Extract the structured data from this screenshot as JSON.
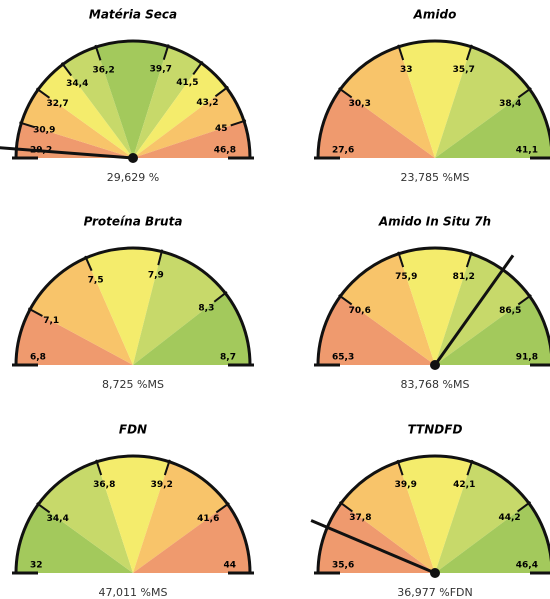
{
  "chart_data": [
    {
      "type": "gauge",
      "title": "Matéria Seca",
      "values": [
        29.629
      ],
      "value_labels": [
        "29,629 %"
      ],
      "ylim": [
        29.2,
        46.8
      ],
      "yticks": [
        {
          "value": 29.2,
          "label": "29,2"
        },
        {
          "value": 30.9,
          "label": "30,9"
        },
        {
          "value": 32.7,
          "label": "32,7"
        },
        {
          "value": 34.4,
          "label": "34,4"
        },
        {
          "value": 36.2,
          "label": "36,2"
        },
        {
          "value": 39.7,
          "label": "39,7"
        },
        {
          "value": 41.5,
          "label": "41,5"
        },
        {
          "value": 43.2,
          "label": "43,2"
        },
        {
          "value": 45,
          "label": "45"
        },
        {
          "value": 46.8,
          "label": "46,8"
        }
      ],
      "band_colors": [
        "#ef9a6e",
        "#f8c46a",
        "#f4ec6c",
        "#c7d96a",
        "#a3c95c",
        "#c7d96a",
        "#f4ec6c",
        "#f8c46a",
        "#ef9a6e"
      ]
    },
    {
      "type": "gauge",
      "title": "Amido",
      "values": [
        23.785
      ],
      "value_labels": [
        "23,785 %MS"
      ],
      "ylim": [
        27.6,
        41.1
      ],
      "yticks": [
        {
          "value": 27.6,
          "label": "27,6"
        },
        {
          "value": 30.3,
          "label": "30,3"
        },
        33,
        {
          "value": 35.7,
          "label": "35,7"
        },
        {
          "value": 38.4,
          "label": "38,4"
        },
        {
          "value": 41.1,
          "label": "41,1"
        }
      ],
      "band_colors": [
        "#ef9a6e",
        "#f8c46a",
        "#f4ec6c",
        "#c7d96a",
        "#a3c95c"
      ]
    },
    {
      "type": "gauge",
      "title": "Proteína Bruta",
      "values": [
        8.725
      ],
      "value_labels": [
        "8,725 %MS"
      ],
      "ylim": [
        6.8,
        8.7
      ],
      "yticks": [
        {
          "value": 6.8,
          "label": "6,8"
        },
        {
          "value": 7.1,
          "label": "7,1"
        },
        {
          "value": 7.5,
          "label": "7,5"
        },
        {
          "value": 7.9,
          "label": "7,9"
        },
        {
          "value": 8.3,
          "label": "8,3"
        },
        {
          "value": 8.7,
          "label": "8,7"
        }
      ],
      "band_colors": [
        "#ef9a6e",
        "#f8c46a",
        "#f4ec6c",
        "#c7d96a",
        "#a3c95c"
      ]
    },
    {
      "type": "gauge",
      "title": "Amido In Situ 7h",
      "values": [
        83.768
      ],
      "value_labels": [
        "83,768 %MS"
      ],
      "ylim": [
        65.3,
        91.8
      ],
      "yticks": [
        {
          "value": 65.3,
          "label": "65,3"
        },
        {
          "value": 70.6,
          "label": "70,6"
        },
        {
          "value": 75.9,
          "label": "75,9"
        },
        {
          "value": 81.2,
          "label": "81,2"
        },
        {
          "value": 86.5,
          "label": "86,5"
        },
        {
          "value": 91.8,
          "label": "91,8"
        }
      ],
      "band_colors": [
        "#ef9a6e",
        "#f8c46a",
        "#f4ec6c",
        "#c7d96a",
        "#a3c95c"
      ]
    },
    {
      "type": "gauge",
      "title": "FDN",
      "values": [
        47.011
      ],
      "value_labels": [
        "47,011 %MS"
      ],
      "ylim": [
        32,
        44
      ],
      "yticks": [
        32,
        {
          "value": 34.4,
          "label": "34,4"
        },
        {
          "value": 36.8,
          "label": "36,8"
        },
        {
          "value": 39.2,
          "label": "39,2"
        },
        {
          "value": 41.6,
          "label": "41,6"
        },
        44
      ],
      "band_colors": [
        "#a3c95c",
        "#c7d96a",
        "#f4ec6c",
        "#f8c46a",
        "#ef9a6e"
      ]
    },
    {
      "type": "gauge",
      "title": "TTNDFD",
      "values": [
        36.977
      ],
      "value_labels": [
        "36,977 %FDN"
      ],
      "ylim": [
        35.6,
        46.4
      ],
      "yticks": [
        {
          "value": 35.6,
          "label": "35,6"
        },
        {
          "value": 37.8,
          "label": "37,8"
        },
        {
          "value": 39.9,
          "label": "39,9"
        },
        {
          "value": 42.1,
          "label": "42,1"
        },
        {
          "value": 44.2,
          "label": "44,2"
        },
        {
          "value": 46.4,
          "label": "46,4"
        }
      ],
      "band_colors": [
        "#ef9a6e",
        "#f8c46a",
        "#f4ec6c",
        "#c7d96a",
        "#a3c95c"
      ]
    }
  ]
}
